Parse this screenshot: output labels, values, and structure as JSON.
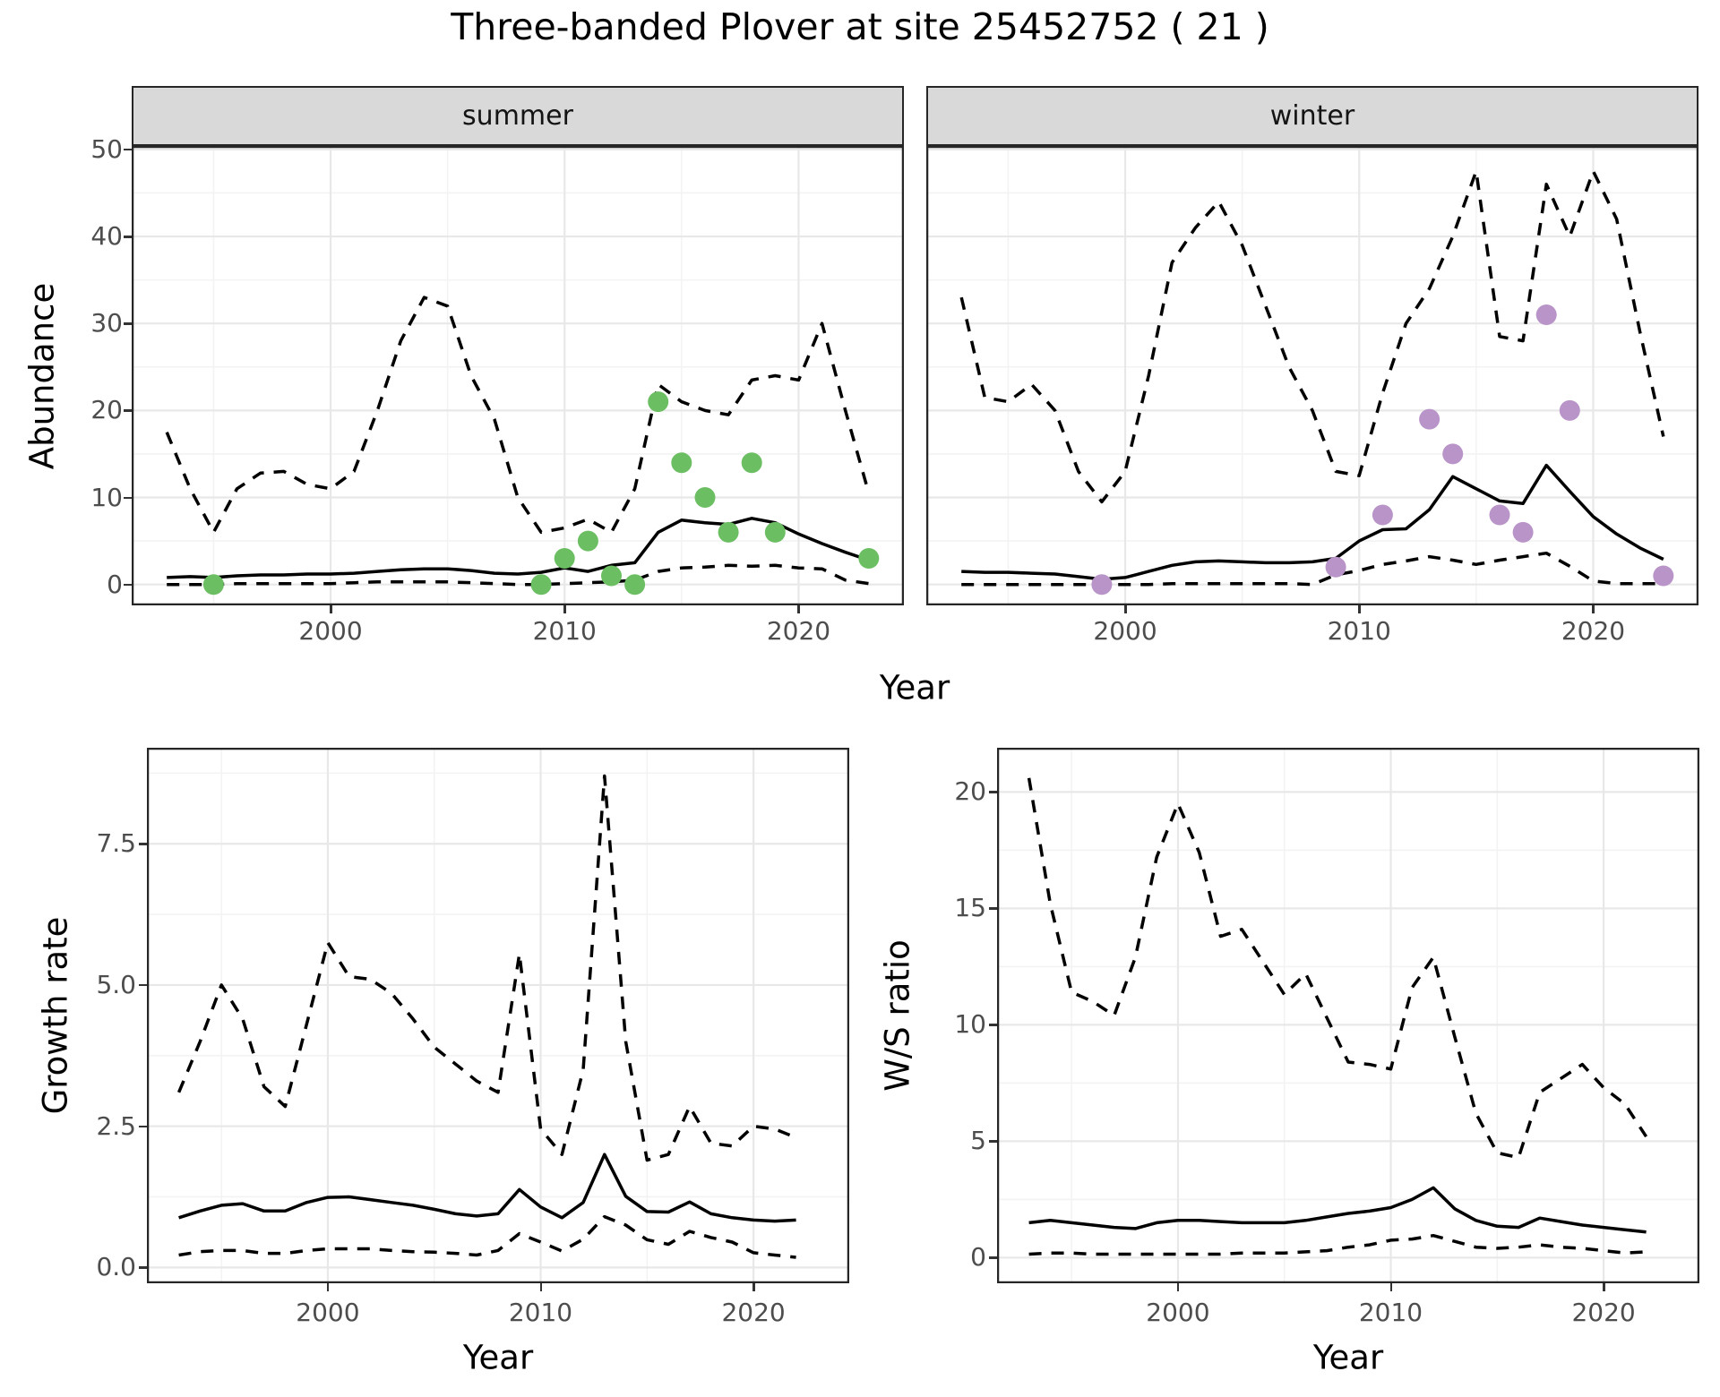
{
  "title": "Three-banded Plover at site 25452752 ( 21 )",
  "colors": {
    "summer_points": "#6cbe63",
    "winter_points": "#b994c8",
    "line": "#000000",
    "strip_background": "#d9d9d9",
    "panel_border": "#262626",
    "grid_major": "#e8e8e8",
    "grid_minor": "#f3f3f3",
    "tick_label": "#4d4d4d"
  },
  "chart_data": [
    {
      "id": "abundance-summer",
      "type": "line",
      "facet_label": "summer",
      "ylabel": "Abundance",
      "xlabel": "Year",
      "xlim": [
        1991.5,
        2024.5
      ],
      "ylim": [
        -2.4,
        50.4
      ],
      "x_ticks": [
        2000,
        2010,
        2020
      ],
      "x_tick_labels": [
        "2000",
        "2010",
        "2020"
      ],
      "x_minor": [
        1995,
        2005,
        2015
      ],
      "y_ticks": [
        0,
        10,
        20,
        30,
        40,
        50
      ],
      "y_tick_labels": [
        "0",
        "10",
        "20",
        "30",
        "40",
        "50"
      ],
      "y_minor": [
        5,
        15,
        25,
        35,
        45
      ],
      "grid": true,
      "legend": "none",
      "x": [
        1993,
        1994,
        1995,
        1996,
        1997,
        1998,
        1999,
        2000,
        2001,
        2002,
        2003,
        2004,
        2005,
        2006,
        2007,
        2008,
        2009,
        2010,
        2011,
        2012,
        2013,
        2014,
        2015,
        2016,
        2017,
        2018,
        2019,
        2020,
        2021,
        2022,
        2023
      ],
      "series": [
        {
          "name": "predicted_median",
          "linetype": "solid",
          "values": [
            0.8,
            0.9,
            0.8,
            1.0,
            1.1,
            1.1,
            1.2,
            1.2,
            1.3,
            1.5,
            1.7,
            1.8,
            1.8,
            1.6,
            1.3,
            1.2,
            1.4,
            1.9,
            1.5,
            2.2,
            2.5,
            6.0,
            7.4,
            7.1,
            6.9,
            7.6,
            7.1,
            5.8,
            4.7,
            3.7,
            2.8
          ]
        },
        {
          "name": "upper_credible_interval",
          "linetype": "dashed",
          "values": [
            17.5,
            11,
            6,
            11,
            12.8,
            13,
            11.5,
            11,
            13,
            20,
            28,
            33,
            32,
            24,
            19,
            10,
            6,
            6.5,
            7.5,
            6,
            11,
            23,
            21,
            20,
            19.5,
            23.5,
            24,
            23.5,
            30,
            20,
            10.5
          ]
        },
        {
          "name": "lower_credible_interval",
          "linetype": "dashed",
          "values": [
            0,
            0,
            0,
            0.1,
            0.1,
            0.1,
            0.1,
            0.1,
            0.2,
            0.3,
            0.3,
            0.3,
            0.3,
            0.2,
            0.1,
            0,
            0,
            0.1,
            0.2,
            0.3,
            0.5,
            1.5,
            1.9,
            2.0,
            2.2,
            2.1,
            2.2,
            1.9,
            1.8,
            0.5,
            0.1
          ]
        }
      ],
      "points": {
        "name": "observed_counts",
        "color": "#6cbe63",
        "data": [
          [
            1995,
            0
          ],
          [
            2009,
            0
          ],
          [
            2010,
            3
          ],
          [
            2011,
            5
          ],
          [
            2012,
            1
          ],
          [
            2013,
            0
          ],
          [
            2014,
            21
          ],
          [
            2015,
            14
          ],
          [
            2016,
            10
          ],
          [
            2017,
            6
          ],
          [
            2018,
            14
          ],
          [
            2019,
            6
          ],
          [
            2023,
            3
          ]
        ]
      }
    },
    {
      "id": "abundance-winter",
      "type": "line",
      "facet_label": "winter",
      "ylabel": "Abundance",
      "xlabel": "Year",
      "xlim": [
        1991.5,
        2024.5
      ],
      "ylim": [
        -2.4,
        50.4
      ],
      "x_ticks": [
        2000,
        2010,
        2020
      ],
      "x_tick_labels": [
        "2000",
        "2010",
        "2020"
      ],
      "x_minor": [
        1995,
        2005,
        2015
      ],
      "y_ticks": [
        0,
        10,
        20,
        30,
        40,
        50
      ],
      "y_tick_labels": [
        "0",
        "10",
        "20",
        "30",
        "40",
        "50"
      ],
      "y_minor": [
        5,
        15,
        25,
        35,
        45
      ],
      "grid": true,
      "legend": "none",
      "x": [
        1993,
        1994,
        1995,
        1996,
        1997,
        1998,
        1999,
        2000,
        2001,
        2002,
        2003,
        2004,
        2005,
        2006,
        2007,
        2008,
        2009,
        2010,
        2011,
        2012,
        2013,
        2014,
        2015,
        2016,
        2017,
        2018,
        2019,
        2020,
        2021,
        2022,
        2023
      ],
      "series": [
        {
          "name": "predicted_median",
          "linetype": "solid",
          "values": [
            1.5,
            1.4,
            1.4,
            1.3,
            1.2,
            0.9,
            0.6,
            0.8,
            1.5,
            2.2,
            2.6,
            2.7,
            2.6,
            2.5,
            2.5,
            2.6,
            3.0,
            5.0,
            6.3,
            6.4,
            8.6,
            12.4,
            11.0,
            9.6,
            9.3,
            13.7,
            10.7,
            7.8,
            5.8,
            4.2,
            2.9
          ]
        },
        {
          "name": "upper_credible_interval",
          "linetype": "dashed",
          "values": [
            33,
            21.5,
            21,
            23,
            20,
            13,
            9.5,
            13,
            24,
            37,
            41,
            44,
            39,
            32,
            25,
            20,
            13,
            12.5,
            22,
            30,
            34,
            40,
            47.5,
            28.5,
            28,
            46,
            40,
            47.5,
            42,
            29,
            17
          ]
        },
        {
          "name": "lower_credible_interval",
          "linetype": "dashed",
          "values": [
            0,
            0,
            0,
            0,
            0,
            0,
            0,
            0,
            0,
            0.1,
            0.1,
            0.1,
            0.1,
            0.1,
            0.1,
            0,
            1.1,
            1.6,
            2.3,
            2.7,
            3.2,
            2.8,
            2.3,
            2.8,
            3.2,
            3.6,
            2.1,
            0.4,
            0.1,
            0.1,
            0.1
          ]
        }
      ],
      "points": {
        "name": "observed_counts",
        "color": "#b994c8",
        "data": [
          [
            1999,
            0
          ],
          [
            2009,
            2
          ],
          [
            2011,
            8
          ],
          [
            2013,
            19
          ],
          [
            2014,
            15
          ],
          [
            2016,
            8
          ],
          [
            2017,
            6
          ],
          [
            2018,
            31
          ],
          [
            2019,
            20
          ],
          [
            2023,
            1
          ]
        ]
      }
    },
    {
      "id": "growth-rate",
      "type": "line",
      "ylabel": "Growth rate",
      "xlabel": "Year",
      "xlim": [
        1991.5,
        2024.5
      ],
      "ylim": [
        -0.28,
        9.2
      ],
      "x_ticks": [
        2000,
        2010,
        2020
      ],
      "x_tick_labels": [
        "2000",
        "2010",
        "2020"
      ],
      "x_minor": [
        1995,
        2005,
        2015
      ],
      "y_ticks": [
        0,
        2.5,
        5,
        7.5
      ],
      "y_tick_labels": [
        "0.0",
        "2.5",
        "5.0",
        "7.5"
      ],
      "y_minor": [
        1.25,
        3.75,
        6.25,
        8.75
      ],
      "grid": true,
      "legend": "none",
      "x": [
        1993,
        1994,
        1995,
        1996,
        1997,
        1998,
        1999,
        2000,
        2001,
        2002,
        2003,
        2004,
        2005,
        2006,
        2007,
        2008,
        2009,
        2010,
        2011,
        2012,
        2013,
        2014,
        2015,
        2016,
        2017,
        2018,
        2019,
        2020,
        2021,
        2022
      ],
      "series": [
        {
          "name": "predicted_median",
          "linetype": "solid",
          "values": [
            0.88,
            1.0,
            1.1,
            1.13,
            1.0,
            1.0,
            1.15,
            1.24,
            1.25,
            1.2,
            1.15,
            1.1,
            1.03,
            0.95,
            0.91,
            0.95,
            1.38,
            1.07,
            0.88,
            1.15,
            2.0,
            1.26,
            0.99,
            0.98,
            1.16,
            0.95,
            0.88,
            0.84,
            0.82,
            0.84
          ]
        },
        {
          "name": "upper_credible_interval",
          "linetype": "dashed",
          "values": [
            3.1,
            4.0,
            5.0,
            4.4,
            3.2,
            2.85,
            4.3,
            5.75,
            5.15,
            5.1,
            4.85,
            4.4,
            3.9,
            3.6,
            3.3,
            3.1,
            5.55,
            2.45,
            2.0,
            3.5,
            8.7,
            4.0,
            1.9,
            2.0,
            2.85,
            2.2,
            2.15,
            2.5,
            2.45,
            2.3
          ]
        },
        {
          "name": "lower_credible_interval",
          "linetype": "dashed",
          "values": [
            0.22,
            0.28,
            0.3,
            0.3,
            0.25,
            0.25,
            0.3,
            0.33,
            0.33,
            0.33,
            0.3,
            0.28,
            0.27,
            0.25,
            0.22,
            0.3,
            0.6,
            0.45,
            0.29,
            0.5,
            0.9,
            0.75,
            0.49,
            0.41,
            0.64,
            0.53,
            0.45,
            0.26,
            0.22,
            0.18
          ]
        }
      ]
    },
    {
      "id": "ws-ratio",
      "type": "line",
      "ylabel": "W/S ratio",
      "xlabel": "Year",
      "xlim": [
        1991.5,
        2024.5
      ],
      "ylim": [
        -1.1,
        21.9
      ],
      "x_ticks": [
        2000,
        2010,
        2020
      ],
      "x_tick_labels": [
        "2000",
        "2010",
        "2020"
      ],
      "x_minor": [
        1995,
        2005,
        2015
      ],
      "y_ticks": [
        0,
        5,
        10,
        15,
        20
      ],
      "y_tick_labels": [
        "0",
        "5",
        "10",
        "15",
        "20"
      ],
      "y_minor": [
        2.5,
        7.5,
        12.5,
        17.5
      ],
      "grid": true,
      "legend": "none",
      "x": [
        1993,
        1994,
        1995,
        1996,
        1997,
        1998,
        1999,
        2000,
        2001,
        2002,
        2003,
        2004,
        2005,
        2006,
        2007,
        2008,
        2009,
        2010,
        2011,
        2012,
        2013,
        2014,
        2015,
        2016,
        2017,
        2018,
        2019,
        2020,
        2021,
        2022
      ],
      "series": [
        {
          "name": "predicted_median",
          "linetype": "solid",
          "values": [
            1.5,
            1.6,
            1.5,
            1.4,
            1.3,
            1.25,
            1.5,
            1.6,
            1.6,
            1.55,
            1.5,
            1.5,
            1.5,
            1.6,
            1.75,
            1.9,
            2.0,
            2.15,
            2.5,
            3.0,
            2.1,
            1.6,
            1.35,
            1.3,
            1.7,
            1.55,
            1.4,
            1.3,
            1.2,
            1.1
          ]
        },
        {
          "name": "upper_credible_interval",
          "linetype": "dashed",
          "values": [
            20.6,
            15.2,
            11.4,
            11.0,
            10.4,
            12.9,
            17.2,
            19.5,
            17.4,
            13.8,
            14.1,
            12.7,
            11.3,
            12.2,
            10.3,
            8.4,
            8.3,
            8.1,
            11.6,
            12.9,
            9.5,
            6.2,
            4.5,
            4.3,
            7.1,
            7.7,
            8.3,
            7.3,
            6.6,
            5.2
          ]
        },
        {
          "name": "lower_credible_interval",
          "linetype": "dashed",
          "values": [
            0.15,
            0.2,
            0.2,
            0.15,
            0.15,
            0.15,
            0.15,
            0.15,
            0.15,
            0.15,
            0.2,
            0.2,
            0.2,
            0.25,
            0.3,
            0.45,
            0.55,
            0.75,
            0.8,
            0.95,
            0.7,
            0.45,
            0.4,
            0.45,
            0.55,
            0.45,
            0.4,
            0.3,
            0.2,
            0.25
          ]
        }
      ]
    }
  ]
}
